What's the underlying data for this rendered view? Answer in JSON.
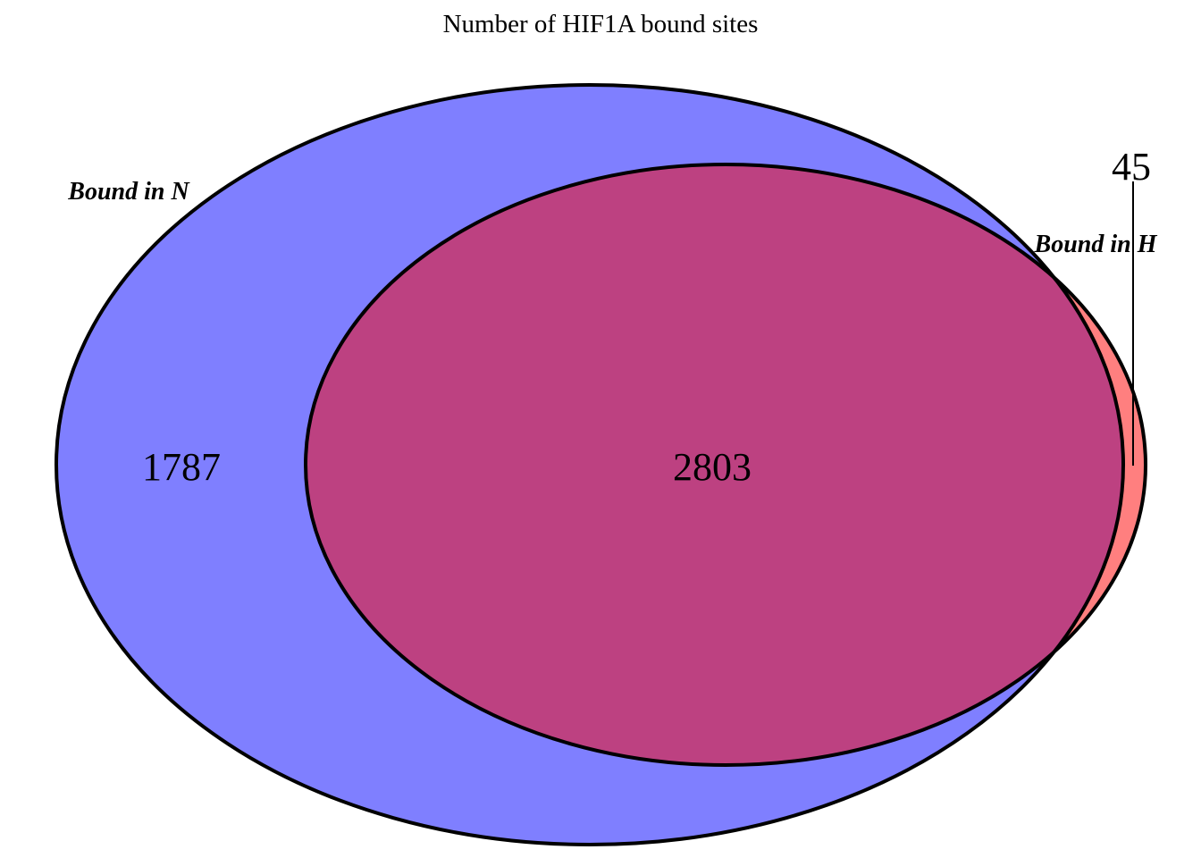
{
  "title": "Number of HIF1A bound sites",
  "sets": [
    {
      "name": "Bound in N",
      "color": "#7f7fff"
    },
    {
      "name": "Bound in H",
      "color": "#ff7f7f"
    }
  ],
  "overlap_color": "#bd4181",
  "outline_color": "#000000",
  "counts": {
    "only_n": "1787",
    "both": "2803",
    "only_h": "45"
  }
}
